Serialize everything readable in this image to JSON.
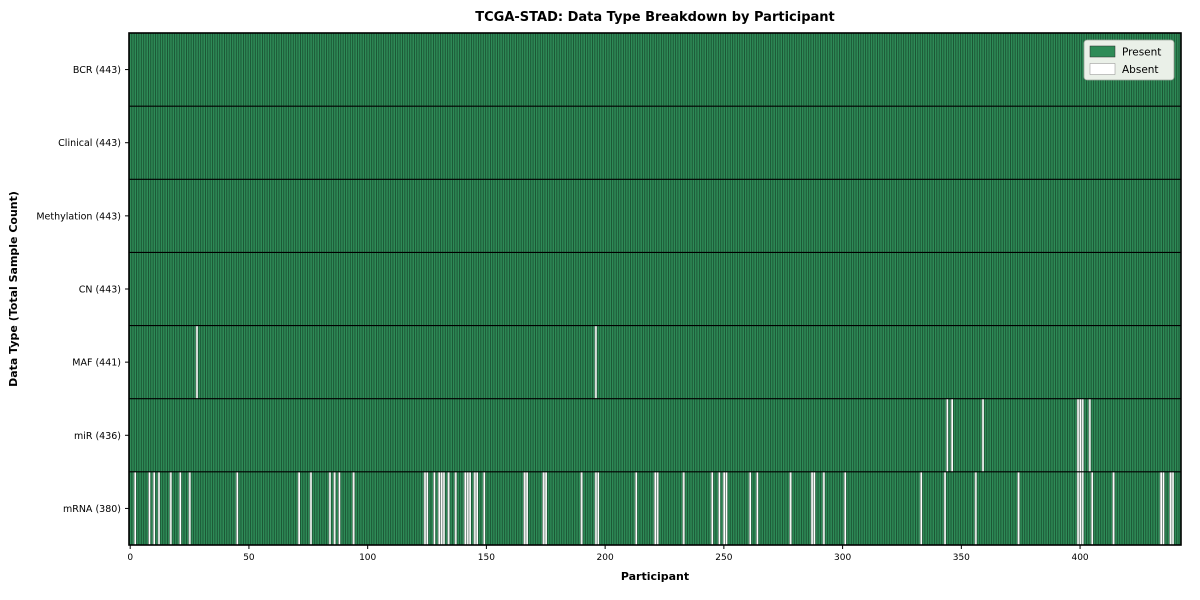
{
  "title": "TCGA-STAD: Data Type Breakdown by Participant",
  "colors": {
    "present": "#2e8b57",
    "absent": "#ffffff",
    "cell_edge": "#0c2918",
    "row_divider": "#000000",
    "plot_border": "#000000",
    "legend_bg": "#eaf0e8",
    "legend_border": "#9aa79a"
  },
  "chart_data": {
    "type": "heatmap",
    "title": "TCGA-STAD: Data Type Breakdown by Participant",
    "xlabel": "Participant",
    "ylabel": "Data Type (Total Sample Count)",
    "n_participants": 443,
    "x_axis": {
      "min": 0,
      "max": 443,
      "ticks": [
        0,
        50,
        100,
        150,
        200,
        250,
        300,
        350,
        400
      ]
    },
    "legend_position": "upper right",
    "grid": false,
    "legend": [
      {
        "label": "Present",
        "color": "#2e8b57"
      },
      {
        "label": "Absent",
        "color": "#ffffff"
      }
    ],
    "rows": [
      {
        "name": "BCR",
        "label": "BCR (443)",
        "total": 443,
        "present_count": 443,
        "absent_participants": []
      },
      {
        "name": "Clinical",
        "label": "Clinical (443)",
        "total": 443,
        "present_count": 443,
        "absent_participants": []
      },
      {
        "name": "Methylation",
        "label": "Methylation (443)",
        "total": 443,
        "present_count": 443,
        "absent_participants": []
      },
      {
        "name": "CN",
        "label": "CN (443)",
        "total": 443,
        "present_count": 443,
        "absent_participants": []
      },
      {
        "name": "MAF",
        "label": "MAF (441)",
        "total": 443,
        "present_count": 441,
        "absent_participants": [
          28,
          196
        ]
      },
      {
        "name": "miR",
        "label": "miR (436)",
        "total": 443,
        "present_count": 436,
        "absent_participants": [
          344,
          346,
          359,
          399,
          400,
          401,
          404
        ]
      },
      {
        "name": "mRNA",
        "label": "mRNA (380)",
        "total": 443,
        "present_count": 380,
        "absent_participants": [
          2,
          8,
          10,
          12,
          17,
          21,
          25,
          45,
          71,
          76,
          84,
          86,
          88,
          94,
          124,
          125,
          128,
          130,
          131,
          132,
          134,
          137,
          141,
          142,
          143,
          145,
          146,
          149,
          166,
          167,
          174,
          175,
          190,
          196,
          197,
          213,
          221,
          222,
          233,
          245,
          248,
          250,
          251,
          261,
          264,
          278,
          287,
          288,
          292,
          301,
          333,
          343,
          356,
          374,
          399,
          400,
          401,
          405,
          414,
          434,
          435,
          438,
          439
        ]
      }
    ]
  }
}
